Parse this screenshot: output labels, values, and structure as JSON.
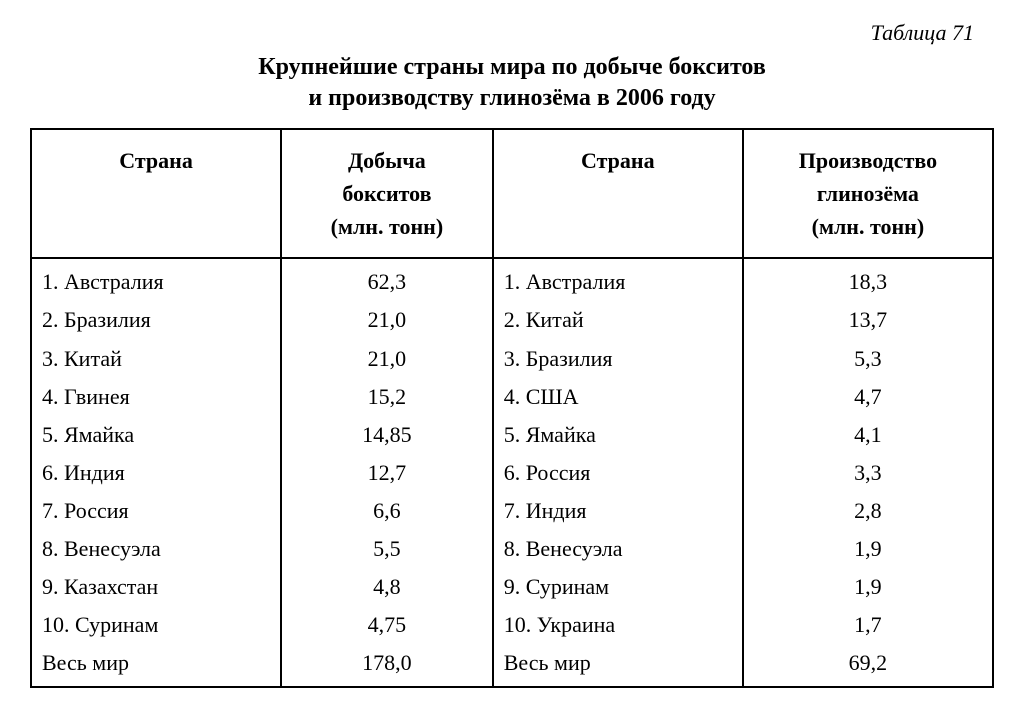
{
  "caption": "Таблица 71",
  "title_line1": "Крупнейшие страны мира по добыче бокситов",
  "title_line2": "и производству глинозёма в 2006 году",
  "headers": {
    "col1_l1": "Страна",
    "col2_l1": "Добыча",
    "col2_l2": "бокситов",
    "col2_l3": "(млн. тонн)",
    "col3_l1": "Страна",
    "col4_l1": "Производство",
    "col4_l2": "глинозёма",
    "col4_l3": "(млн. тонн)"
  },
  "rows": [
    {
      "c1": "1. Австралия",
      "c2": "62,3",
      "c3": "1. Австралия",
      "c4": "18,3"
    },
    {
      "c1": "2. Бразилия",
      "c2": "21,0",
      "c3": "2. Китай",
      "c4": "13,7"
    },
    {
      "c1": "3. Китай",
      "c2": "21,0",
      "c3": "3. Бразилия",
      "c4": "5,3"
    },
    {
      "c1": "4. Гвинея",
      "c2": "15,2",
      "c3": "4. США",
      "c4": "4,7"
    },
    {
      "c1": "5. Ямайка",
      "c2": "14,85",
      "c3": "5. Ямайка",
      "c4": "4,1"
    },
    {
      "c1": "6. Индия",
      "c2": "12,7",
      "c3": "6. Россия",
      "c4": "3,3"
    },
    {
      "c1": "7. Россия",
      "c2": "6,6",
      "c3": "7. Индия",
      "c4": "2,8"
    },
    {
      "c1": "8. Венесуэла",
      "c2": "5,5",
      "c3": "8. Венесуэла",
      "c4": "1,9"
    },
    {
      "c1": "9. Казахстан",
      "c2": "4,8",
      "c3": "9. Суринам",
      "c4": "1,9"
    },
    {
      "c1": "10. Суринам",
      "c2": "4,75",
      "c3": "10. Украина",
      "c4": "1,7"
    },
    {
      "c1": "Весь мир",
      "c2": "178,0",
      "c3": "Весь мир",
      "c4": "69,2"
    }
  ]
}
